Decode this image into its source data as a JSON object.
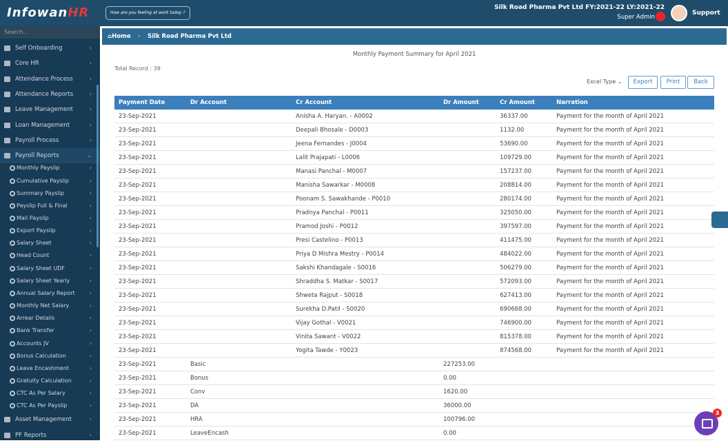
{
  "header": {
    "logo": "Infowan",
    "logo_accent": "HR",
    "mood": "How are you feeling at work today ?",
    "company": "Silk Road Pharma Pvt Ltd FY:2021-22 LY:2021-22",
    "role": "Super Admin",
    "support": "Support"
  },
  "sidebar": {
    "search": "Search...",
    "items": [
      "Self Onboarding",
      "Core HR",
      "Attendance Process",
      "Attendance Reports",
      "Leave Management",
      "Loan Management",
      "Payroll Process",
      "Payroll Reports"
    ],
    "sub_items": [
      "Monthly Payslip",
      "Cumulative Payslip",
      "Summary Payslip",
      "Payslip Full & Final",
      "Mail Payslip",
      "Export Payslip",
      "Salary Sheet",
      "Head Count",
      "Salary Sheet UDF",
      "Salary Sheet Yearly",
      "Annual Salary Report",
      "Monthly Net Salary",
      "Arrear Details",
      "Bank Transfer",
      "Accounts JV",
      "Bonus Calculation",
      "Leave Encashment",
      "Gratuity Calculation",
      "CTC As Per Salary",
      "CTC As Per Payslip"
    ],
    "items_after": [
      "Asset Management",
      "PF Reports"
    ]
  },
  "breadcrumb": {
    "home": "Home",
    "current": "Silk Road Pharma Pvt Ltd"
  },
  "report": {
    "title": "Monthly Payment Summary for April 2021",
    "total": "Total Record : 39",
    "excel_type": "Excel Type",
    "buttons": [
      "Export",
      "Print",
      "Back"
    ]
  },
  "table": {
    "columns": [
      "Payment Date",
      "Dr Account",
      "Cr Account",
      "Dr Amount",
      "Cr Amount",
      "Narration"
    ],
    "rows": [
      {
        "payment_date": "23-Sep-2021",
        "cr_account": "Anisha A. Haryan. - A0002",
        "cr_amount": "36337.00",
        "narration": "Payment for the month of April 2021"
      },
      {
        "payment_date": "23-Sep-2021",
        "cr_account": "Deepali Bhosale - D0003",
        "cr_amount": "1132.00",
        "narration": "Payment for the month of April 2021"
      },
      {
        "payment_date": "23-Sep-2021",
        "cr_account": "Jeena Fernandes - J0004",
        "cr_amount": "53690.00",
        "narration": "Payment for the month of April 2021"
      },
      {
        "payment_date": "23-Sep-2021",
        "cr_account": "Lalit Prajapati - L0006",
        "cr_amount": "109729.00",
        "narration": "Payment for the month of April 2021"
      },
      {
        "payment_date": "23-Sep-2021",
        "cr_account": "Manasi Panchal - M0007",
        "cr_amount": "157237.00",
        "narration": "Payment for the month of April 2021"
      },
      {
        "payment_date": "23-Sep-2021",
        "cr_account": "Manisha Sawarkar - M0008",
        "cr_amount": "208814.00",
        "narration": "Payment for the month of April 2021"
      },
      {
        "payment_date": "23-Sep-2021",
        "cr_account": "Poonam S. Sawakhande - P0010",
        "cr_amount": "280174.00",
        "narration": "Payment for the month of April 2021"
      },
      {
        "payment_date": "23-Sep-2021",
        "cr_account": "Pradnya Panchal - P0011",
        "cr_amount": "325050.00",
        "narration": "Payment for the month of April 2021"
      },
      {
        "payment_date": "23-Sep-2021",
        "cr_account": "Pramod Joshi - P0012",
        "cr_amount": "397597.00",
        "narration": "Payment for the month of April 2021"
      },
      {
        "payment_date": "23-Sep-2021",
        "cr_account": "Presi Castelino - P0013",
        "cr_amount": "411475.00",
        "narration": "Payment for the month of April 2021"
      },
      {
        "payment_date": "23-Sep-2021",
        "cr_account": "Priya D Mishra Mestry - P0014",
        "cr_amount": "484022.00",
        "narration": "Payment for the month of April 2021"
      },
      {
        "payment_date": "23-Sep-2021",
        "cr_account": "Sakshi Khandagale - S0016",
        "cr_amount": "506279.00",
        "narration": "Payment for the month of April 2021"
      },
      {
        "payment_date": "23-Sep-2021",
        "cr_account": "Shraddha S. Matkar - S0017",
        "cr_amount": "572093.00",
        "narration": "Payment for the month of April 2021"
      },
      {
        "payment_date": "23-Sep-2021",
        "cr_account": "Shweta Rajput - S0018",
        "cr_amount": "627413.00",
        "narration": "Payment for the month of April 2021"
      },
      {
        "payment_date": "23-Sep-2021",
        "cr_account": "Surekha D.Patil - S0020",
        "cr_amount": "690668.00",
        "narration": "Payment for the month of April 2021"
      },
      {
        "payment_date": "23-Sep-2021",
        "cr_account": "Vijay Gothal - V0021",
        "cr_amount": "746900.00",
        "narration": "Payment for the month of April 2021"
      },
      {
        "payment_date": "23-Sep-2021",
        "cr_account": "Vinita Sawant - V0022",
        "cr_amount": "815378.00",
        "narration": "Payment for the month of April 2021"
      },
      {
        "payment_date": "23-Sep-2021",
        "cr_account": "Yogita Tawde - Y0023",
        "cr_amount": "874568.00",
        "narration": "Payment for the month of April 2021"
      },
      {
        "payment_date": "23-Sep-2021",
        "dr_account": "Basic",
        "dr_amount": "227253.00"
      },
      {
        "payment_date": "23-Sep-2021",
        "dr_account": "Bonus",
        "dr_amount": "0.00"
      },
      {
        "payment_date": "23-Sep-2021",
        "dr_account": "Conv",
        "dr_amount": "1620.00"
      },
      {
        "payment_date": "23-Sep-2021",
        "dr_account": "DA",
        "dr_amount": "36000.00"
      },
      {
        "payment_date": "23-Sep-2021",
        "dr_account": "HRA",
        "dr_amount": "100796.00"
      },
      {
        "payment_date": "23-Sep-2021",
        "dr_account": "LeaveEncash",
        "dr_amount": "0.00"
      }
    ]
  },
  "chat_badge": "3"
}
